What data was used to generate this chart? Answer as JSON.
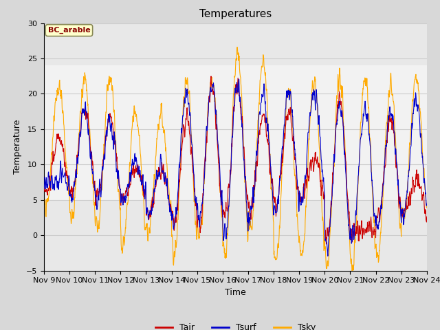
{
  "title": "Temperatures",
  "xlabel": "Time",
  "ylabel": "Temperature",
  "ylim": [
    -5,
    30
  ],
  "xlim": [
    0,
    15
  ],
  "fig_bg_color": "#d8d8d8",
  "plot_bg_color": "#e8e8e8",
  "shade_low": 5,
  "shade_high": 24,
  "shade_color": "#f2f2f2",
  "line_colors": {
    "Tair": "#cc0000",
    "Tsurf": "#0000cc",
    "Tsky": "#ffaa00"
  },
  "legend_label": "BC_arable",
  "legend_text_color": "#880000",
  "legend_bg_color": "#ffffcc",
  "legend_border_color": "#888855",
  "x_tick_labels": [
    "Nov 9",
    "Nov 10",
    "Nov 11",
    "Nov 12",
    "Nov 13",
    "Nov 14",
    "Nov 15",
    "Nov 16",
    "Nov 17",
    "Nov 18",
    "Nov 19",
    "Nov 20",
    "Nov 21",
    "Nov 22",
    "Nov 23",
    "Nov 24"
  ],
  "x_tick_positions": [
    0,
    1,
    2,
    3,
    4,
    5,
    6,
    7,
    8,
    9,
    10,
    11,
    12,
    13,
    14,
    15
  ],
  "y_ticks": [
    -5,
    0,
    5,
    10,
    15,
    20,
    25,
    30
  ],
  "grid_color": "#cccccc"
}
